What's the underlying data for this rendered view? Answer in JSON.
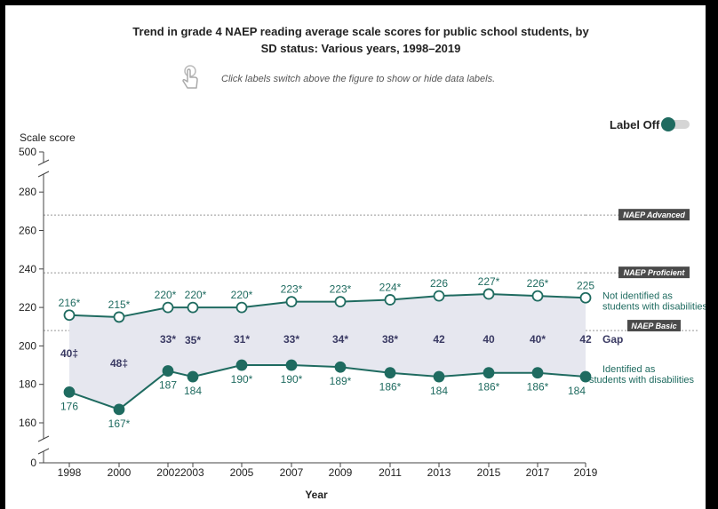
{
  "title": "Trend in grade 4 NAEP reading average scale scores for public school students, by SD status: Various years, 1998–2019",
  "hint": "Click labels switch above the figure to show or hide data labels.",
  "toggle_label": "Label Off",
  "colors": {
    "line": "#1f6b60",
    "gap_fill": "#e6e7ef",
    "gap_text": "#3a3a63",
    "level_box": "#4a4a4a"
  },
  "icons": {
    "hint": "hand-pointer-icon"
  },
  "chart_data": {
    "type": "line",
    "title": "Trend in grade 4 NAEP reading average scale scores for public school students, by SD status: Various years, 1998–2019",
    "xlabel": "Year",
    "ylabel": "Scale score",
    "x": [
      "1998",
      "2000",
      "2002",
      "2003",
      "2005",
      "2007",
      "2009",
      "2011",
      "2013",
      "2015",
      "2017",
      "2019"
    ],
    "y_ticks": [
      "0",
      "160",
      "180",
      "200",
      "220",
      "240",
      "260",
      "280",
      "500"
    ],
    "ylim": [
      0,
      500
    ],
    "axis_break": true,
    "grid": false,
    "series": [
      {
        "name": "Not identified as students with disabilities",
        "values": [
          216,
          215,
          220,
          220,
          220,
          223,
          223,
          224,
          226,
          227,
          226,
          225
        ],
        "labels": [
          "216*",
          "215*",
          "220*",
          "220*",
          "220*",
          "223*",
          "223*",
          "224*",
          "226",
          "227*",
          "226*",
          "225"
        ],
        "marker": "open-circle"
      },
      {
        "name": "Identified as students with disabilities",
        "values": [
          176,
          167,
          187,
          184,
          190,
          190,
          189,
          186,
          184,
          186,
          186,
          184
        ],
        "labels": [
          "176",
          "167*",
          "187",
          "184",
          "190*",
          "190*",
          "189*",
          "186*",
          "184",
          "186*",
          "186*",
          "184"
        ],
        "marker": "filled-circle"
      }
    ],
    "gap": {
      "name": "Gap",
      "labels": [
        "40‡",
        "48‡",
        "33*",
        "35*",
        "31*",
        "33*",
        "34*",
        "38*",
        "42",
        "40",
        "40*",
        "42"
      ]
    },
    "reference_lines": [
      {
        "name": "NAEP Advanced",
        "value": 268
      },
      {
        "name": "NAEP Proficient",
        "value": 238
      },
      {
        "name": "NAEP Basic",
        "value": 208
      }
    ]
  }
}
